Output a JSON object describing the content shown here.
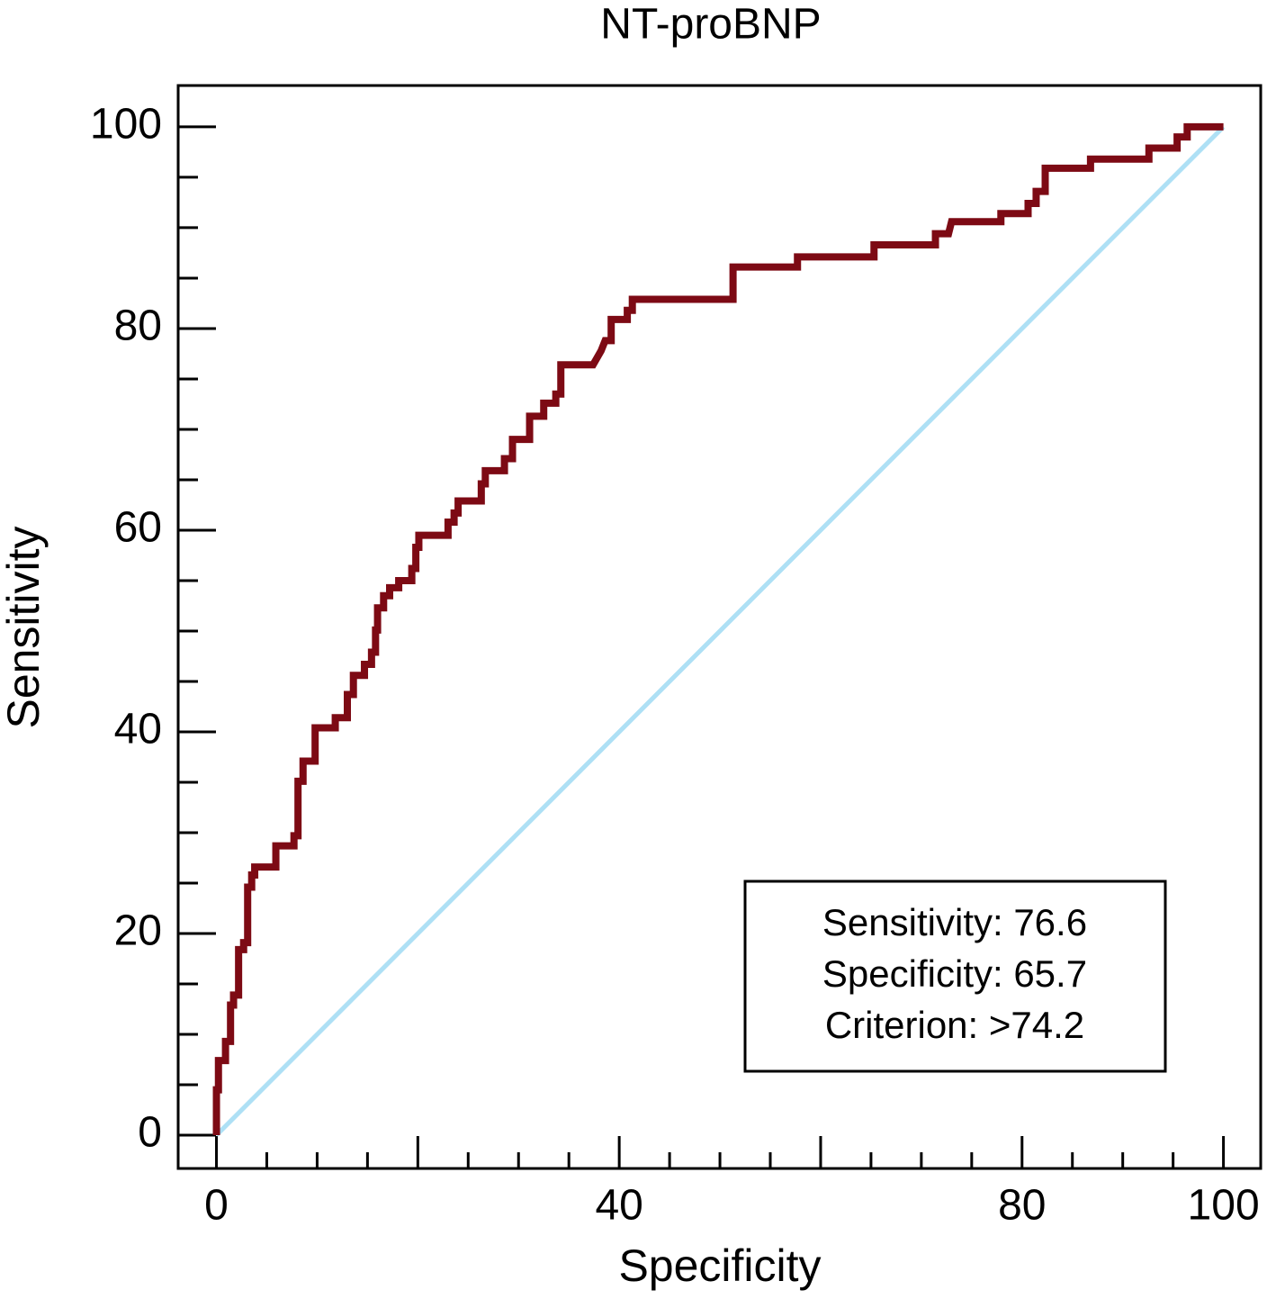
{
  "chart_data": {
    "type": "line",
    "title": "NT-proBNP",
    "xlabel": "Specificity",
    "ylabel": "Sensitivity",
    "xlim": [
      -3.8,
      103.7
    ],
    "ylim": [
      -3.3,
      104.1
    ],
    "xticks": [
      0,
      40,
      80,
      100
    ],
    "yticks": [
      0,
      20,
      40,
      60,
      80,
      100
    ],
    "xminor_ticks": [
      5,
      10,
      15,
      20,
      25,
      30,
      35,
      45,
      50,
      55,
      60,
      65,
      70,
      75,
      85,
      90,
      95
    ],
    "yminor_ticks": [
      5,
      10,
      15,
      25,
      30,
      35,
      45,
      50,
      55,
      65,
      70,
      75,
      85,
      90,
      95
    ],
    "series": [
      {
        "color": "#aee0f5",
        "x": [
          0,
          100
        ],
        "values": [
          0,
          100
        ]
      },
      {
        "color": "#7d0a14",
        "x": [
          0,
          0,
          0.2,
          0.2,
          0.9,
          0.9,
          1.4,
          1.4,
          1.7,
          1.7,
          2.2,
          2.2,
          2.7,
          2.7,
          3.1,
          3.1,
          3.5,
          3.5,
          3.8,
          3.8,
          5.9,
          5.9,
          7.7,
          7.7,
          8.1,
          8.1,
          8.6,
          8.6,
          9.8,
          9.8,
          11.8,
          11.8,
          13.0,
          13.0,
          13.6,
          13.6,
          14.7,
          14.7,
          15.4,
          15.4,
          15.8,
          15.8,
          16.0,
          16.0,
          16.6,
          16.6,
          17.2,
          17.2,
          18.1,
          18.1,
          19.4,
          19.4,
          19.8,
          19.8,
          20.1,
          20.1,
          23.0,
          23.0,
          23.6,
          23.6,
          24.0,
          24.0,
          26.3,
          26.3,
          26.7,
          26.7,
          28.6,
          28.6,
          29.4,
          29.4,
          31.1,
          31.1,
          32.5,
          32.5,
          33.7,
          33.7,
          34.2,
          34.2,
          37.4,
          38.2,
          38.6,
          39.2,
          39.2,
          40.8,
          40.8,
          41.3,
          41.3,
          51.3,
          51.3,
          57.7,
          57.7,
          65.3,
          65.3,
          71.4,
          71.4,
          72.7,
          73.0,
          77.9,
          77.9,
          80.6,
          80.6,
          81.4,
          81.4,
          82.3,
          82.3,
          86.8,
          86.8,
          92.6,
          92.6,
          95.4,
          95.4,
          96.4,
          96.4,
          100
        ],
        "values": [
          0,
          4.5,
          4.5,
          7.4,
          7.4,
          9.3,
          9.3,
          12.9,
          12.9,
          13.9,
          13.9,
          18.4,
          18.4,
          19.1,
          19.1,
          24.6,
          24.6,
          25.8,
          25.8,
          26.6,
          26.6,
          28.7,
          28.7,
          29.7,
          29.7,
          35.1,
          35.1,
          37.1,
          37.1,
          40.4,
          40.4,
          41.4,
          41.4,
          43.7,
          43.7,
          45.6,
          45.6,
          46.7,
          46.7,
          47.9,
          47.9,
          50.1,
          50.1,
          52.3,
          52.3,
          53.5,
          53.5,
          54.3,
          54.3,
          55.0,
          55.0,
          56.2,
          56.2,
          58.3,
          58.3,
          59.5,
          59.5,
          60.8,
          60.8,
          61.7,
          61.7,
          62.9,
          62.9,
          64.6,
          64.6,
          65.9,
          65.9,
          67.1,
          67.1,
          69.0,
          69.0,
          71.3,
          71.3,
          72.6,
          72.6,
          73.5,
          73.5,
          76.4,
          76.4,
          77.8,
          78.8,
          78.8,
          80.9,
          80.9,
          81.8,
          81.8,
          82.9,
          82.9,
          86.1,
          86.1,
          87.1,
          87.1,
          88.3,
          88.3,
          89.4,
          89.4,
          90.6,
          90.6,
          91.4,
          91.4,
          92.4,
          92.4,
          93.6,
          93.6,
          95.9,
          95.9,
          96.8,
          96.8,
          97.9,
          97.9,
          99.0,
          99.0,
          100,
          100
        ]
      }
    ],
    "annotations": [
      "Sensitivity: 76.6",
      "Specificity: 65.7",
      "Criterion: >74.2"
    ]
  }
}
